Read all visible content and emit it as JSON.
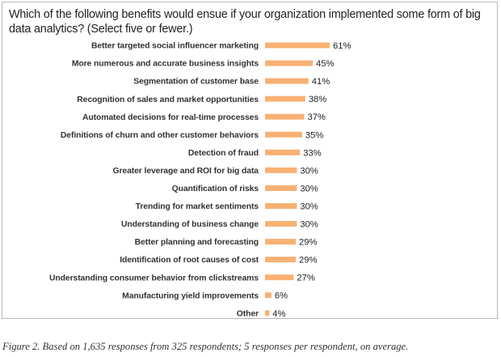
{
  "figure": {
    "caption": "Figure 2. Based on 1,635 responses from 325 respondents; 5 responses per respondent, on average."
  },
  "colors": {
    "bar": "#f8b173",
    "text": "#333333"
  },
  "chart_data": {
    "type": "bar",
    "orientation": "horizontal",
    "title": "Which of the following benefits would ensue if your organization implemented some form of big data analytics? (Select five or fewer.)",
    "categories": [
      "Better targeted social influencer marketing",
      "More numerous and accurate business insights",
      "Segmentation of customer base",
      "Recognition of sales and market opportunities",
      "Automated decisions for real-time processes",
      "Definitions of churn and other customer behaviors",
      "Detection of fraud",
      "Greater leverage and ROI for big data",
      "Quantification of risks",
      "Trending for market sentiments",
      "Understanding of business change",
      "Better planning and forecasting",
      "Identification of root causes of cost",
      "Understanding consumer behavior from clickstreams",
      "Manufacturing yield improvements",
      "Other"
    ],
    "values": [
      61,
      45,
      41,
      38,
      37,
      35,
      33,
      30,
      30,
      30,
      30,
      29,
      29,
      27,
      6,
      4
    ],
    "value_labels": [
      "61%",
      "45%",
      "41%",
      "38%",
      "37%",
      "35%",
      "33%",
      "30%",
      "30%",
      "30%",
      "30%",
      "29%",
      "29%",
      "27%",
      "6%",
      "4%"
    ],
    "unit": "%",
    "xlim": [
      0,
      61
    ],
    "grid": false,
    "legend": "none"
  }
}
